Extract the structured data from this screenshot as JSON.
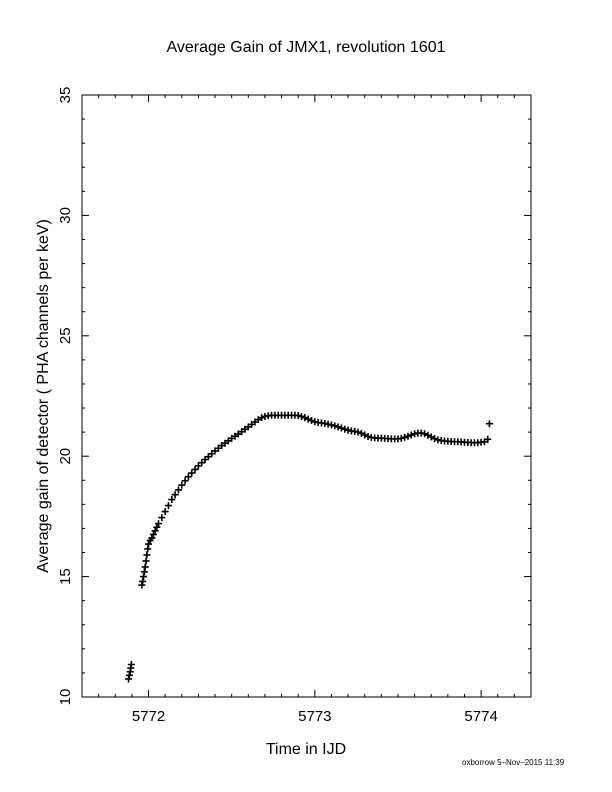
{
  "chart_data": {
    "type": "scatter",
    "title": "Average Gain of JMX1, revolution 1601",
    "xlabel": "Time in IJD",
    "ylabel": "Average gain of detector ( PHA channels per keV)",
    "xlim": [
      5771.6,
      5774.3
    ],
    "ylim": [
      10,
      35
    ],
    "xticks": [
      5772,
      5773,
      5774
    ],
    "yticks": [
      10,
      15,
      20,
      25,
      30,
      35
    ],
    "grid": false,
    "marker": "plus",
    "series": [
      {
        "points": [
          [
            5771.88,
            10.75
          ],
          [
            5771.885,
            10.9
          ],
          [
            5771.89,
            11.05
          ],
          [
            5771.893,
            11.2
          ],
          [
            5771.897,
            11.35
          ],
          [
            5771.96,
            14.65
          ],
          [
            5771.965,
            14.8
          ],
          [
            5771.97,
            15.0
          ],
          [
            5771.975,
            15.2
          ],
          [
            5771.98,
            15.4
          ],
          [
            5771.985,
            15.65
          ],
          [
            5771.99,
            15.9
          ],
          [
            5771.995,
            16.15
          ],
          [
            5772.0,
            16.35
          ],
          [
            5772.01,
            16.5
          ],
          [
            5772.02,
            16.6
          ],
          [
            5772.03,
            16.75
          ],
          [
            5772.04,
            16.9
          ],
          [
            5772.05,
            17.05
          ],
          [
            5772.06,
            17.2
          ],
          [
            5772.08,
            17.45
          ],
          [
            5772.1,
            17.7
          ],
          [
            5772.12,
            17.95
          ],
          [
            5772.14,
            18.2
          ],
          [
            5772.16,
            18.4
          ],
          [
            5772.18,
            18.6
          ],
          [
            5772.2,
            18.8
          ],
          [
            5772.22,
            18.98
          ],
          [
            5772.24,
            19.15
          ],
          [
            5772.26,
            19.3
          ],
          [
            5772.28,
            19.45
          ],
          [
            5772.3,
            19.6
          ],
          [
            5772.32,
            19.73
          ],
          [
            5772.34,
            19.86
          ],
          [
            5772.36,
            19.98
          ],
          [
            5772.38,
            20.1
          ],
          [
            5772.4,
            20.22
          ],
          [
            5772.42,
            20.33
          ],
          [
            5772.44,
            20.44
          ],
          [
            5772.46,
            20.54
          ],
          [
            5772.48,
            20.64
          ],
          [
            5772.5,
            20.74
          ],
          [
            5772.52,
            20.83
          ],
          [
            5772.54,
            20.92
          ],
          [
            5772.56,
            21.02
          ],
          [
            5772.58,
            21.12
          ],
          [
            5772.6,
            21.22
          ],
          [
            5772.62,
            21.32
          ],
          [
            5772.64,
            21.42
          ],
          [
            5772.66,
            21.52
          ],
          [
            5772.68,
            21.6
          ],
          [
            5772.7,
            21.65
          ],
          [
            5772.72,
            21.68
          ],
          [
            5772.74,
            21.7
          ],
          [
            5772.76,
            21.7
          ],
          [
            5772.78,
            21.7
          ],
          [
            5772.8,
            21.7
          ],
          [
            5772.82,
            21.7
          ],
          [
            5772.84,
            21.7
          ],
          [
            5772.86,
            21.7
          ],
          [
            5772.88,
            21.7
          ],
          [
            5772.9,
            21.69
          ],
          [
            5772.92,
            21.65
          ],
          [
            5772.94,
            21.6
          ],
          [
            5772.96,
            21.54
          ],
          [
            5772.98,
            21.48
          ],
          [
            5773.0,
            21.43
          ],
          [
            5773.02,
            21.4
          ],
          [
            5773.04,
            21.38
          ],
          [
            5773.06,
            21.36
          ],
          [
            5773.08,
            21.33
          ],
          [
            5773.1,
            21.3
          ],
          [
            5773.12,
            21.26
          ],
          [
            5773.14,
            21.22
          ],
          [
            5773.16,
            21.17
          ],
          [
            5773.18,
            21.12
          ],
          [
            5773.2,
            21.08
          ],
          [
            5773.22,
            21.05
          ],
          [
            5773.24,
            21.03
          ],
          [
            5773.26,
            21.0
          ],
          [
            5773.28,
            20.95
          ],
          [
            5773.3,
            20.88
          ],
          [
            5773.32,
            20.82
          ],
          [
            5773.34,
            20.78
          ],
          [
            5773.36,
            20.76
          ],
          [
            5773.38,
            20.75
          ],
          [
            5773.4,
            20.75
          ],
          [
            5773.42,
            20.74
          ],
          [
            5773.44,
            20.73
          ],
          [
            5773.46,
            20.72
          ],
          [
            5773.48,
            20.72
          ],
          [
            5773.5,
            20.72
          ],
          [
            5773.52,
            20.74
          ],
          [
            5773.54,
            20.78
          ],
          [
            5773.56,
            20.83
          ],
          [
            5773.58,
            20.88
          ],
          [
            5773.6,
            20.93
          ],
          [
            5773.62,
            20.96
          ],
          [
            5773.64,
            20.96
          ],
          [
            5773.66,
            20.93
          ],
          [
            5773.68,
            20.87
          ],
          [
            5773.7,
            20.8
          ],
          [
            5773.72,
            20.73
          ],
          [
            5773.74,
            20.68
          ],
          [
            5773.76,
            20.65
          ],
          [
            5773.78,
            20.63
          ],
          [
            5773.8,
            20.62
          ],
          [
            5773.82,
            20.61
          ],
          [
            5773.84,
            20.6
          ],
          [
            5773.86,
            20.6
          ],
          [
            5773.88,
            20.59
          ],
          [
            5773.9,
            20.58
          ],
          [
            5773.92,
            20.57
          ],
          [
            5773.94,
            20.56
          ],
          [
            5773.96,
            20.56
          ],
          [
            5773.98,
            20.56
          ],
          [
            5774.0,
            20.58
          ],
          [
            5774.02,
            20.6
          ],
          [
            5774.04,
            20.7
          ],
          [
            5774.05,
            21.35
          ]
        ]
      }
    ]
  },
  "footer": "oxborrow  5–Nov–2015 11:39"
}
